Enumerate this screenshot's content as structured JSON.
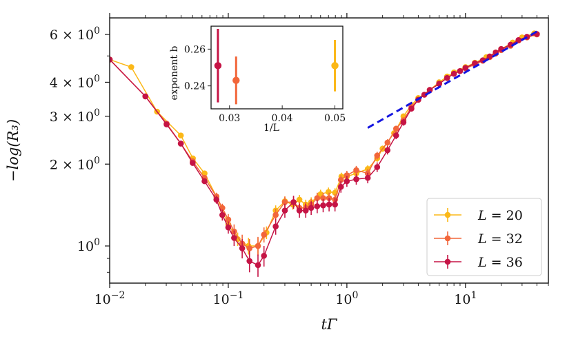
{
  "chart_data": [
    {
      "type": "line",
      "scale": "log-log",
      "title": "",
      "xlabel": "tΓ",
      "ylabel": "−log(R₃)",
      "xlim": [
        0.01,
        50
      ],
      "ylim": [
        0.73,
        6.9
      ],
      "x_ticks": [
        {
          "value": 0.01,
          "base": "10",
          "exp": "−2"
        },
        {
          "value": 0.1,
          "base": "10",
          "exp": "−1"
        },
        {
          "value": 1,
          "base": "10",
          "exp": "0"
        },
        {
          "value": 10,
          "base": "10",
          "exp": "1"
        }
      ],
      "y_ticks": [
        {
          "value": 1,
          "mant": "",
          "base": "10",
          "exp": "0"
        },
        {
          "value": 2,
          "mant": "2 × ",
          "base": "10",
          "exp": "0"
        },
        {
          "value": 3,
          "mant": "3 × ",
          "base": "10",
          "exp": "0"
        },
        {
          "value": 4,
          "mant": "4 × ",
          "base": "10",
          "exp": "0"
        },
        {
          "value": 6,
          "mant": "6 × ",
          "base": "10",
          "exp": "0"
        }
      ],
      "legend": {
        "position": "lower-right"
      },
      "series": [
        {
          "name": "L = 20",
          "prefix": "L",
          "suffix": " = 20",
          "color": "#fbb818",
          "x": [
            0.01,
            0.0152,
            0.0251,
            0.0398,
            0.0503,
            0.0631,
            0.0794,
            0.1,
            0.12,
            0.148,
            0.178,
            0.21,
            0.251,
            0.3,
            0.35,
            0.398,
            0.45,
            0.5,
            0.6,
            0.7,
            0.794,
            0.9,
            1.0,
            1.2,
            1.5,
            1.8,
            2.0,
            2.5,
            3.0,
            3.5,
            4.0,
            5.0,
            6.0,
            7.0,
            8.0,
            10.0,
            12.0,
            15.0,
            18.0,
            20.0,
            25.0,
            30.0,
            38.0
          ],
          "y": [
            4.85,
            4.55,
            3.12,
            2.55,
            2.1,
            1.85,
            1.52,
            1.2,
            1.06,
            1.0,
            1.0,
            1.12,
            1.35,
            1.46,
            1.42,
            1.48,
            1.42,
            1.45,
            1.55,
            1.58,
            1.57,
            1.8,
            1.8,
            1.85,
            1.92,
            2.1,
            2.28,
            2.6,
            3.0,
            3.3,
            3.5,
            3.75,
            4.0,
            4.2,
            4.35,
            4.55,
            4.72,
            4.95,
            5.15,
            5.3,
            5.6,
            5.85,
            6.05
          ],
          "err": [
            0.02,
            0.02,
            0.02,
            0.03,
            0.03,
            0.03,
            0.04,
            0.05,
            0.06,
            0.07,
            0.07,
            0.06,
            0.06,
            0.06,
            0.06,
            0.06,
            0.06,
            0.06,
            0.06,
            0.06,
            0.06,
            0.06,
            0.06,
            0.06,
            0.06,
            0.06,
            0.06,
            0.06,
            0.06,
            0.06,
            0.06,
            0.06,
            0.06,
            0.06,
            0.06,
            0.06,
            0.06,
            0.06,
            0.06,
            0.06,
            0.06,
            0.06,
            0.06
          ]
        },
        {
          "name": "L = 32",
          "prefix": "L",
          "suffix": " = 32",
          "color": "#f2663a",
          "x": [
            0.01,
            0.02,
            0.0302,
            0.0398,
            0.0501,
            0.0631,
            0.0794,
            0.0891,
            0.1,
            0.112,
            0.131,
            0.151,
            0.178,
            0.2,
            0.251,
            0.3,
            0.355,
            0.398,
            0.45,
            0.5,
            0.562,
            0.631,
            0.708,
            0.794,
            0.891,
            1.0,
            1.2,
            1.5,
            1.8,
            2.2,
            2.6,
            3.0,
            3.5,
            4.0,
            4.5,
            5.0,
            6.0,
            7.0,
            8.0,
            9.0,
            10.0,
            12.0,
            14.0,
            16.0,
            18.0,
            20.0,
            24.0,
            28.0,
            33.0,
            40.0
          ],
          "y": [
            4.85,
            3.55,
            2.82,
            2.38,
            2.05,
            1.78,
            1.52,
            1.38,
            1.25,
            1.13,
            1.02,
            0.98,
            1.0,
            1.1,
            1.3,
            1.45,
            1.45,
            1.38,
            1.38,
            1.42,
            1.5,
            1.5,
            1.5,
            1.48,
            1.75,
            1.82,
            1.9,
            1.85,
            2.15,
            2.4,
            2.7,
            2.9,
            3.25,
            3.45,
            3.6,
            3.75,
            3.95,
            4.15,
            4.3,
            4.4,
            4.5,
            4.65,
            4.8,
            4.95,
            5.1,
            5.25,
            5.45,
            5.7,
            5.85,
            6.0
          ],
          "err": [
            0.02,
            0.02,
            0.02,
            0.03,
            0.03,
            0.03,
            0.05,
            0.05,
            0.06,
            0.07,
            0.08,
            0.08,
            0.08,
            0.07,
            0.07,
            0.07,
            0.07,
            0.07,
            0.07,
            0.07,
            0.07,
            0.07,
            0.07,
            0.07,
            0.07,
            0.07,
            0.07,
            0.07,
            0.07,
            0.07,
            0.07,
            0.07,
            0.07,
            0.07,
            0.07,
            0.07,
            0.07,
            0.07,
            0.07,
            0.07,
            0.07,
            0.07,
            0.07,
            0.07,
            0.07,
            0.07,
            0.07,
            0.07,
            0.07,
            0.07
          ]
        },
        {
          "name": "L = 36",
          "prefix": "L",
          "suffix": " = 36",
          "color": "#c51445",
          "x": [
            0.01,
            0.02,
            0.0302,
            0.0398,
            0.0501,
            0.0631,
            0.0794,
            0.0891,
            0.1,
            0.112,
            0.131,
            0.151,
            0.178,
            0.2,
            0.251,
            0.3,
            0.355,
            0.398,
            0.45,
            0.5,
            0.562,
            0.631,
            0.708,
            0.794,
            0.891,
            1.0,
            1.2,
            1.5,
            1.8,
            2.2,
            2.6,
            3.0,
            3.5,
            4.0,
            4.5,
            5.0,
            6.0,
            7.0,
            8.0,
            9.0,
            10.0,
            12.0,
            14.0,
            16.0,
            18.0,
            20.0,
            24.0,
            28.0,
            33.0,
            40.0
          ],
          "y": [
            4.85,
            3.55,
            2.8,
            2.38,
            2.02,
            1.73,
            1.48,
            1.3,
            1.17,
            1.07,
            0.98,
            0.88,
            0.85,
            0.92,
            1.18,
            1.35,
            1.45,
            1.35,
            1.35,
            1.38,
            1.4,
            1.41,
            1.42,
            1.42,
            1.65,
            1.73,
            1.76,
            1.78,
            1.95,
            2.25,
            2.55,
            2.85,
            3.2,
            3.45,
            3.6,
            3.75,
            3.95,
            4.15,
            4.3,
            4.4,
            4.52,
            4.7,
            4.82,
            4.98,
            5.15,
            5.3,
            5.5,
            5.72,
            5.88,
            6.02
          ],
          "err": [
            0.02,
            0.02,
            0.02,
            0.03,
            0.03,
            0.03,
            0.05,
            0.06,
            0.06,
            0.07,
            0.08,
            0.08,
            0.08,
            0.08,
            0.08,
            0.08,
            0.08,
            0.08,
            0.08,
            0.08,
            0.08,
            0.08,
            0.08,
            0.08,
            0.08,
            0.08,
            0.08,
            0.08,
            0.08,
            0.08,
            0.08,
            0.08,
            0.08,
            0.08,
            0.08,
            0.08,
            0.08,
            0.08,
            0.08,
            0.08,
            0.08,
            0.08,
            0.08,
            0.08,
            0.08,
            0.08,
            0.08,
            0.08,
            0.08,
            0.08
          ]
        }
      ],
      "fit_line": {
        "style": "dashed",
        "color": "#1515e0",
        "x": [
          1.5,
          40
        ],
        "y": [
          2.72,
          6.15
        ]
      }
    },
    {
      "type": "scatter",
      "title": "",
      "xlabel": "1/L",
      "ylabel": "exponent b",
      "xlim": [
        0.0265,
        0.0515
      ],
      "ylim": [
        0.2275,
        0.2725
      ],
      "x_ticks": [
        {
          "value": 0.03,
          "label": "0.03"
        },
        {
          "value": 0.04,
          "label": "0.04"
        },
        {
          "value": 0.05,
          "label": "0.05"
        }
      ],
      "y_ticks": [
        {
          "value": 0.24,
          "label": "0.24"
        },
        {
          "value": 0.26,
          "label": "0.26"
        }
      ],
      "points": [
        {
          "x": 0.0278,
          "y": 0.251,
          "err": 0.02,
          "color": "#c51445"
        },
        {
          "x": 0.03125,
          "y": 0.243,
          "err": 0.013,
          "color": "#f2663a"
        },
        {
          "x": 0.05,
          "y": 0.251,
          "err": 0.014,
          "color": "#fbb818"
        }
      ]
    }
  ]
}
